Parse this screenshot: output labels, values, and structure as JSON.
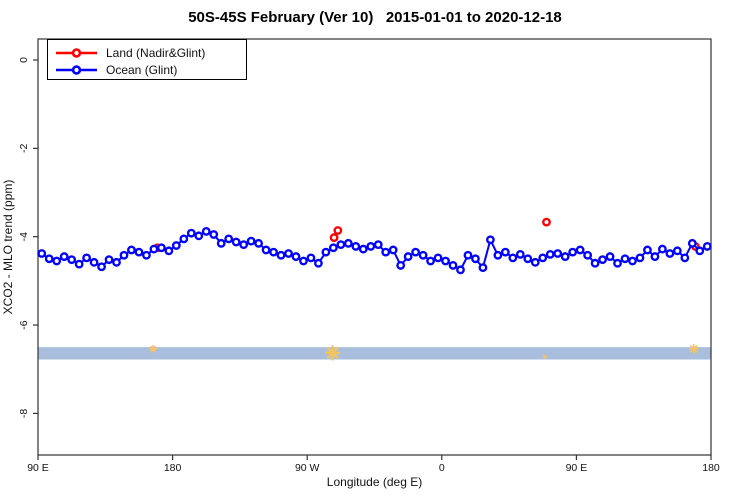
{
  "title": "50S-45S February (Ver 10)   2015-01-01 to 2020-12-18",
  "legend": {
    "items": [
      {
        "label": "Land (Nadir&Glint)",
        "color": "#FF0000"
      },
      {
        "label": "Ocean (Glint)",
        "color": "#0000FF"
      }
    ]
  },
  "chart_data": {
    "type": "scatter",
    "title": "50S-45S February (Ver 10)   2015-01-01 to 2020-12-18",
    "xlabel": "Longitude (deg E)",
    "ylabel": "XCO2 - MLO trend (ppm)",
    "x_axis": {
      "range": [
        0,
        450
      ],
      "ticks": [
        {
          "pos": 0,
          "label": "90 E"
        },
        {
          "pos": 90,
          "label": "180"
        },
        {
          "pos": 180,
          "label": "90 W"
        },
        {
          "pos": 270,
          "label": "0"
        },
        {
          "pos": 360,
          "label": "90 E"
        },
        {
          "pos": 450,
          "label": "180"
        }
      ]
    },
    "y_axis": {
      "range": [
        -9.0,
        0.5
      ],
      "ticks": [
        {
          "pos": 0,
          "label": "0"
        },
        {
          "pos": -2,
          "label": "-2"
        },
        {
          "pos": -4,
          "label": "-4"
        },
        {
          "pos": -6,
          "label": "-6"
        },
        {
          "pos": -8,
          "label": "-8"
        }
      ]
    },
    "band": {
      "y_from": -6.5,
      "y_to": -6.78,
      "color": "#A8BEDC"
    },
    "extra_marks": {
      "color": "#F2C464",
      "items": [
        {
          "x": 77,
          "y": -6.54,
          "size": 6
        },
        {
          "x": 197,
          "y": -6.63,
          "size": 13
        },
        {
          "x": 339,
          "y": -6.72,
          "size": 3
        },
        {
          "x": 438.5,
          "y": -6.54,
          "size": 8
        }
      ]
    },
    "series": [
      {
        "name": "Land (Nadir&Glint)",
        "color": "#FF0000",
        "marker": "open-circle",
        "points": [
          [
            80,
            -4.25
          ],
          [
            198,
            -4.02
          ],
          [
            200.5,
            -3.86
          ],
          [
            340,
            -3.67
          ],
          [
            439.5,
            -4.22
          ]
        ],
        "segments": [
          [
            1,
            2
          ]
        ]
      },
      {
        "name": "Ocean (Glint)",
        "color": "#0000FF",
        "marker": "open-circle",
        "x": [
          2.5,
          7.5,
          12.5,
          17.5,
          22.5,
          27.5,
          32.5,
          37.5,
          42.5,
          47.5,
          52.5,
          57.5,
          62.5,
          67.5,
          72.5,
          77.5,
          82.5,
          87.5,
          92.5,
          97.5,
          102.5,
          107.5,
          112.5,
          117.5,
          122.5,
          127.5,
          132.5,
          137.5,
          142.5,
          147.5,
          152.5,
          157.5,
          162.5,
          167.5,
          172.5,
          177.5,
          182.5,
          187.5,
          192.5,
          197.5,
          202.5,
          207.5,
          212.5,
          217.5,
          222.5,
          227.5,
          232.5,
          237.5,
          242.5,
          247.5,
          252.5,
          257.5,
          262.5,
          267.5,
          272.5,
          277.5,
          282.5,
          287.5,
          292.5,
          297.5,
          302.5,
          307.5,
          312.5,
          317.5,
          322.5,
          327.5,
          332.5,
          337.5,
          342.5,
          347.5,
          352.5,
          357.5,
          362.5,
          367.5,
          372.5,
          377.5,
          382.5,
          387.5,
          392.5,
          397.5,
          402.5,
          407.5,
          412.5,
          417.5,
          422.5,
          427.5,
          432.5,
          437.5,
          442.5,
          447.5
        ],
        "y": [
          -4.38,
          -4.5,
          -4.55,
          -4.45,
          -4.52,
          -4.62,
          -4.48,
          -4.58,
          -4.68,
          -4.52,
          -4.58,
          -4.42,
          -4.3,
          -4.35,
          -4.42,
          -4.28,
          -4.25,
          -4.32,
          -4.2,
          -4.05,
          -3.92,
          -3.98,
          -3.88,
          -3.95,
          -4.15,
          -4.05,
          -4.12,
          -4.18,
          -4.1,
          -4.15,
          -4.3,
          -4.35,
          -4.42,
          -4.38,
          -4.45,
          -4.55,
          -4.48,
          -4.6,
          -4.35,
          -4.25,
          -4.18,
          -4.15,
          -4.22,
          -4.28,
          -4.22,
          -4.18,
          -4.35,
          -4.3,
          -4.65,
          -4.45,
          -4.35,
          -4.42,
          -4.55,
          -4.48,
          -4.55,
          -4.65,
          -4.75,
          -4.42,
          -4.5,
          -4.7,
          -4.07,
          -4.42,
          -4.35,
          -4.48,
          -4.4,
          -4.5,
          -4.58,
          -4.48,
          -4.4,
          -4.38,
          -4.45,
          -4.35,
          -4.3,
          -4.42,
          -4.6,
          -4.52,
          -4.45,
          -4.6,
          -4.5,
          -4.55,
          -4.48,
          -4.3,
          -4.45,
          -4.28,
          -4.38,
          -4.32,
          -4.48,
          -4.15,
          -4.32,
          -4.22
        ]
      }
    ]
  }
}
